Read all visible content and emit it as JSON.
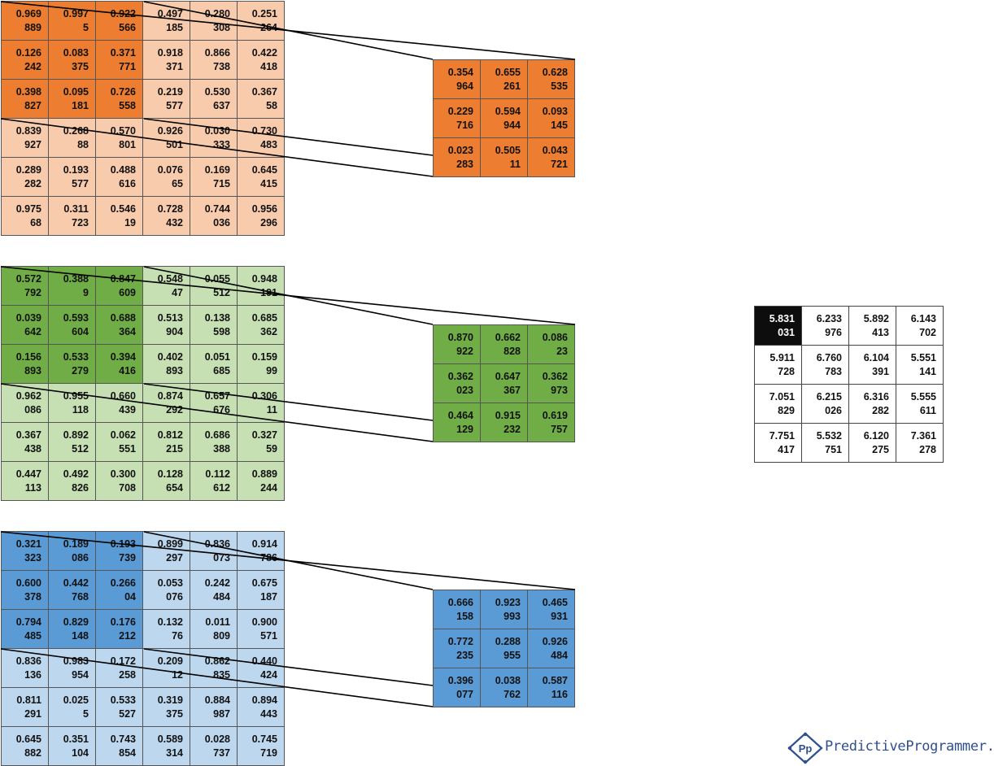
{
  "inputs": {
    "orange": [
      [
        "0.969 889",
        "0.997 5",
        "0.922 566",
        "0.497 185",
        "0.280 308",
        "0.251 264"
      ],
      [
        "0.126 242",
        "0.083 375",
        "0.371 771",
        "0.918 371",
        "0.866 738",
        "0.422 418"
      ],
      [
        "0.398 827",
        "0.095 181",
        "0.726 558",
        "0.219 577",
        "0.530 637",
        "0.367 58"
      ],
      [
        "0.839 927",
        "0.268 88",
        "0.570 801",
        "0.926 501",
        "0.030 333",
        "0.730 483"
      ],
      [
        "0.289 282",
        "0.193 577",
        "0.488 616",
        "0.076 65",
        "0.169 715",
        "0.645 415"
      ],
      [
        "0.975 68",
        "0.311 723",
        "0.546 19",
        "0.728 432",
        "0.744 036",
        "0.956 296"
      ]
    ],
    "green": [
      [
        "0.572 792",
        "0.388 9",
        "0.847 609",
        "0.548 47",
        "0.055 512",
        "0.948 191"
      ],
      [
        "0.039 642",
        "0.593 604",
        "0.688 364",
        "0.513 904",
        "0.138 598",
        "0.685 362"
      ],
      [
        "0.156 893",
        "0.533 279",
        "0.394 416",
        "0.402 893",
        "0.051 685",
        "0.159 99"
      ],
      [
        "0.962 086",
        "0.955 118",
        "0.660 439",
        "0.874 292",
        "0.657 676",
        "0.306 11"
      ],
      [
        "0.367 438",
        "0.892 512",
        "0.062 551",
        "0.812 215",
        "0.686 388",
        "0.327 59"
      ],
      [
        "0.447 113",
        "0.492 826",
        "0.300 708",
        "0.128 654",
        "0.112 612",
        "0.889 244"
      ]
    ],
    "blue": [
      [
        "0.321 323",
        "0.189 086",
        "0.193 739",
        "0.899 297",
        "0.836 073",
        "0.914 786"
      ],
      [
        "0.600 378",
        "0.442 768",
        "0.266 04",
        "0.053 076",
        "0.242 484",
        "0.675 187"
      ],
      [
        "0.794 485",
        "0.829 148",
        "0.176 212",
        "0.132 76",
        "0.011 809",
        "0.900 571"
      ],
      [
        "0.836 136",
        "0.983 954",
        "0.172 258",
        "0.209 12",
        "0.862 835",
        "0.440 424"
      ],
      [
        "0.811 291",
        "0.025 5",
        "0.533 527",
        "0.319 375",
        "0.884 987",
        "0.894 443"
      ],
      [
        "0.645 882",
        "0.351 104",
        "0.743 854",
        "0.589 314",
        "0.028 737",
        "0.745 719"
      ]
    ]
  },
  "kernels": {
    "orange": [
      [
        "0.354 964",
        "0.655 261",
        "0.628 535"
      ],
      [
        "0.229 716",
        "0.594 944",
        "0.093 145"
      ],
      [
        "0.023 283",
        "0.505 11",
        "0.043 721"
      ]
    ],
    "green": [
      [
        "0.870 922",
        "0.662 828",
        "0.086 23"
      ],
      [
        "0.362 023",
        "0.647 367",
        "0.362 973"
      ],
      [
        "0.464 129",
        "0.915 232",
        "0.619 757"
      ]
    ],
    "blue": [
      [
        "0.666 158",
        "0.923 993",
        "0.465 931"
      ],
      [
        "0.772 235",
        "0.288 955",
        "0.926 484"
      ],
      [
        "0.396 077",
        "0.038 762",
        "0.587 116"
      ]
    ]
  },
  "output": [
    [
      "5.831 031",
      "6.233 976",
      "5.892 413",
      "6.143 702"
    ],
    [
      "5.911 728",
      "6.760 783",
      "6.104 391",
      "5.551 141"
    ],
    [
      "7.051 829",
      "6.215 026",
      "6.316 282",
      "5.555 611"
    ],
    [
      "7.751 417",
      "5.532 751",
      "6.120 275",
      "7.361 278"
    ]
  ],
  "colors": {
    "orange_dark": "#ed7d31",
    "orange_light": "#f8cbad",
    "green_dark": "#70ad47",
    "green_light": "#c6e0b4",
    "blue_dark": "#5b9bd5",
    "blue_light": "#bdd7ee",
    "highlight": "#0d0d0d"
  },
  "logo": {
    "mark": "Pp",
    "text": "PredictiveProgrammer.com",
    "icon": "diamond-pp-logo-icon"
  }
}
